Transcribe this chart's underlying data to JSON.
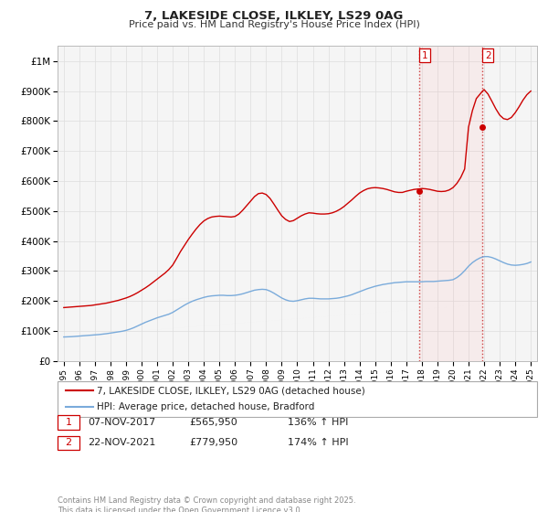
{
  "title": "7, LAKESIDE CLOSE, ILKLEY, LS29 0AG",
  "subtitle": "Price paid vs. HM Land Registry's House Price Index (HPI)",
  "property_label": "7, LAKESIDE CLOSE, ILKLEY, LS29 0AG (detached house)",
  "hpi_label": "HPI: Average price, detached house, Bradford",
  "line_color_property": "#cc0000",
  "line_color_hpi": "#7aabdb",
  "background_color": "#f5f5f5",
  "grid_color": "#dddddd",
  "sale1_label": "1",
  "sale1_date": "07-NOV-2017",
  "sale1_price": "£565,950",
  "sale1_hpi": "136% ↑ HPI",
  "sale2_label": "2",
  "sale2_date": "22-NOV-2021",
  "sale2_price": "£779,950",
  "sale2_hpi": "174% ↑ HPI",
  "footnote": "Contains HM Land Registry data © Crown copyright and database right 2025.\nThis data is licensed under the Open Government Licence v3.0.",
  "ylim": [
    0,
    1050000
  ],
  "yticks": [
    0,
    100000,
    200000,
    300000,
    400000,
    500000,
    600000,
    700000,
    800000,
    900000,
    1000000
  ],
  "sale1_x": 2017.86,
  "sale1_y": 565950,
  "sale2_x": 2021.9,
  "sale2_y": 779950,
  "xlim_left": 1994.6,
  "xlim_right": 2025.4,
  "property_data_x": [
    1995.0,
    1995.25,
    1995.5,
    1995.75,
    1996.0,
    1996.25,
    1996.5,
    1996.75,
    1997.0,
    1997.25,
    1997.5,
    1997.75,
    1998.0,
    1998.25,
    1998.5,
    1998.75,
    1999.0,
    1999.25,
    1999.5,
    1999.75,
    2000.0,
    2000.25,
    2000.5,
    2000.75,
    2001.0,
    2001.25,
    2001.5,
    2001.75,
    2002.0,
    2002.25,
    2002.5,
    2002.75,
    2003.0,
    2003.25,
    2003.5,
    2003.75,
    2004.0,
    2004.25,
    2004.5,
    2004.75,
    2005.0,
    2005.25,
    2005.5,
    2005.75,
    2006.0,
    2006.25,
    2006.5,
    2006.75,
    2007.0,
    2007.25,
    2007.5,
    2007.75,
    2008.0,
    2008.25,
    2008.5,
    2008.75,
    2009.0,
    2009.25,
    2009.5,
    2009.75,
    2010.0,
    2010.25,
    2010.5,
    2010.75,
    2011.0,
    2011.25,
    2011.5,
    2011.75,
    2012.0,
    2012.25,
    2012.5,
    2012.75,
    2013.0,
    2013.25,
    2013.5,
    2013.75,
    2014.0,
    2014.25,
    2014.5,
    2014.75,
    2015.0,
    2015.25,
    2015.5,
    2015.75,
    2016.0,
    2016.25,
    2016.5,
    2016.75,
    2017.0,
    2017.25,
    2017.5,
    2017.86,
    2018.0,
    2018.25,
    2018.5,
    2018.75,
    2019.0,
    2019.25,
    2019.5,
    2019.75,
    2020.0,
    2020.25,
    2020.5,
    2020.75,
    2021.0,
    2021.25,
    2021.5,
    2021.9,
    2022.0,
    2022.25,
    2022.5,
    2022.75,
    2023.0,
    2023.25,
    2023.5,
    2023.75,
    2024.0,
    2024.25,
    2024.5,
    2024.75,
    2025.0
  ],
  "property_data_y": [
    178000,
    179000,
    180000,
    181000,
    182000,
    183000,
    184000,
    185000,
    187000,
    189000,
    191000,
    193000,
    196000,
    199000,
    202000,
    206000,
    210000,
    215000,
    221000,
    228000,
    236000,
    244000,
    253000,
    263000,
    273000,
    283000,
    293000,
    305000,
    320000,
    342000,
    365000,
    385000,
    405000,
    423000,
    440000,
    455000,
    467000,
    475000,
    480000,
    482000,
    483000,
    482000,
    481000,
    480000,
    482000,
    490000,
    503000,
    518000,
    533000,
    548000,
    558000,
    560000,
    555000,
    542000,
    523000,
    503000,
    484000,
    472000,
    465000,
    468000,
    476000,
    484000,
    490000,
    494000,
    493000,
    491000,
    490000,
    490000,
    491000,
    494000,
    499000,
    506000,
    515000,
    526000,
    537000,
    549000,
    560000,
    568000,
    574000,
    577000,
    578000,
    577000,
    575000,
    572000,
    568000,
    564000,
    562000,
    562000,
    565950,
    569000,
    572000,
    574000,
    575000,
    574000,
    572000,
    569000,
    566000,
    565000,
    566000,
    570000,
    578000,
    592000,
    612000,
    640000,
    779950,
    835000,
    875000,
    900000,
    905000,
    890000,
    866000,
    841000,
    820000,
    808000,
    805000,
    812000,
    828000,
    848000,
    870000,
    888000,
    900000
  ],
  "hpi_data_x": [
    1995.0,
    1995.25,
    1995.5,
    1995.75,
    1996.0,
    1996.25,
    1996.5,
    1996.75,
    1997.0,
    1997.25,
    1997.5,
    1997.75,
    1998.0,
    1998.25,
    1998.5,
    1998.75,
    1999.0,
    1999.25,
    1999.5,
    1999.75,
    2000.0,
    2000.25,
    2000.5,
    2000.75,
    2001.0,
    2001.25,
    2001.5,
    2001.75,
    2002.0,
    2002.25,
    2002.5,
    2002.75,
    2003.0,
    2003.25,
    2003.5,
    2003.75,
    2004.0,
    2004.25,
    2004.5,
    2004.75,
    2005.0,
    2005.25,
    2005.5,
    2005.75,
    2006.0,
    2006.25,
    2006.5,
    2006.75,
    2007.0,
    2007.25,
    2007.5,
    2007.75,
    2008.0,
    2008.25,
    2008.5,
    2008.75,
    2009.0,
    2009.25,
    2009.5,
    2009.75,
    2010.0,
    2010.25,
    2010.5,
    2010.75,
    2011.0,
    2011.25,
    2011.5,
    2011.75,
    2012.0,
    2012.25,
    2012.5,
    2012.75,
    2013.0,
    2013.25,
    2013.5,
    2013.75,
    2014.0,
    2014.25,
    2014.5,
    2014.75,
    2015.0,
    2015.25,
    2015.5,
    2015.75,
    2016.0,
    2016.25,
    2016.5,
    2016.75,
    2017.0,
    2017.25,
    2017.5,
    2017.75,
    2018.0,
    2018.25,
    2018.5,
    2018.75,
    2019.0,
    2019.25,
    2019.5,
    2019.75,
    2020.0,
    2020.25,
    2020.5,
    2020.75,
    2021.0,
    2021.25,
    2021.5,
    2021.75,
    2022.0,
    2022.25,
    2022.5,
    2022.75,
    2023.0,
    2023.25,
    2023.5,
    2023.75,
    2024.0,
    2024.25,
    2024.5,
    2024.75,
    2025.0
  ],
  "hpi_data_y": [
    80000,
    80500,
    81000,
    82000,
    83000,
    84000,
    85000,
    86000,
    87000,
    88000,
    89500,
    91000,
    93000,
    95000,
    97000,
    99000,
    102000,
    106000,
    111000,
    117000,
    123000,
    129000,
    134000,
    139000,
    144000,
    148000,
    152000,
    156000,
    162000,
    170000,
    178000,
    186000,
    193000,
    199000,
    204000,
    208000,
    212000,
    215000,
    217000,
    218000,
    219000,
    219000,
    218000,
    218000,
    219000,
    221000,
    224000,
    228000,
    232000,
    236000,
    238000,
    239000,
    238000,
    233000,
    226000,
    218000,
    210000,
    204000,
    200000,
    199000,
    201000,
    204000,
    207000,
    209000,
    209000,
    208000,
    207000,
    207000,
    207000,
    208000,
    209000,
    211000,
    214000,
    217000,
    221000,
    226000,
    231000,
    236000,
    241000,
    245000,
    249000,
    252000,
    255000,
    257000,
    259000,
    261000,
    262000,
    263000,
    264000,
    264000,
    264000,
    264000,
    264000,
    265000,
    265000,
    265000,
    266000,
    267000,
    268000,
    269000,
    271000,
    278000,
    288000,
    301000,
    316000,
    328000,
    337000,
    344000,
    348000,
    348000,
    345000,
    340000,
    334000,
    328000,
    323000,
    320000,
    319000,
    320000,
    322000,
    325000,
    330000
  ]
}
